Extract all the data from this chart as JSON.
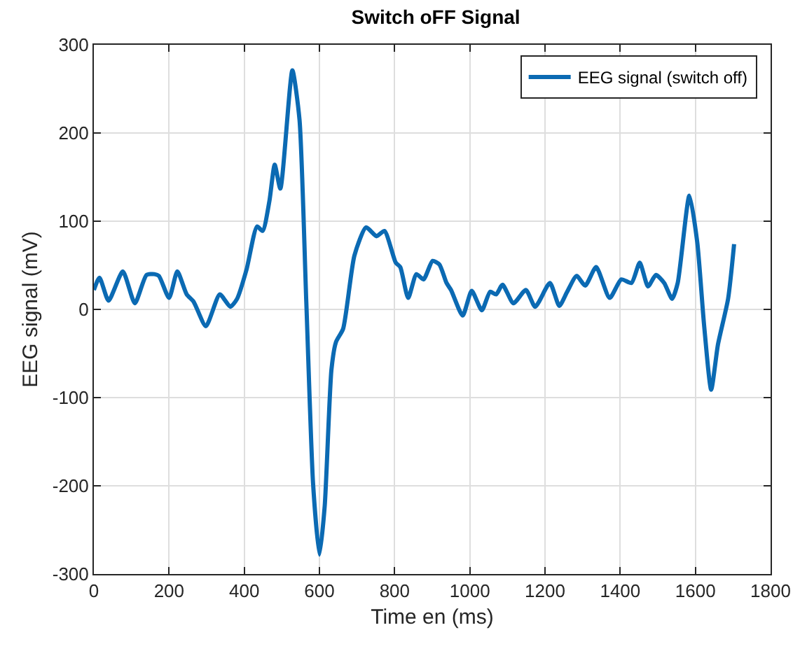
{
  "chart_data": {
    "type": "line",
    "title": "Switch oFF Signal",
    "xlabel": "Time en (ms)",
    "ylabel": "EEG signal (mV)",
    "x": [
      0,
      15,
      39,
      77,
      109,
      140,
      161,
      173,
      200,
      222,
      247,
      265,
      298,
      335,
      363,
      381,
      406,
      434,
      449,
      467,
      481,
      496,
      528,
      547,
      565,
      583,
      600,
      614,
      632,
      644,
      663,
      693,
      724,
      752,
      773,
      803,
      815,
      836,
      858,
      877,
      901,
      919,
      938,
      950,
      981,
      1005,
      1032,
      1054,
      1070,
      1087,
      1116,
      1149,
      1174,
      1213,
      1238,
      1259,
      1284,
      1307,
      1336,
      1372,
      1403,
      1430,
      1452,
      1474,
      1495,
      1517,
      1538,
      1553,
      1584,
      1605,
      1623,
      1642,
      1660,
      1687,
      1703
    ],
    "series": [
      {
        "name": "EEG signal (switch off)",
        "color": "#0b6ab3",
        "values": [
          22,
          36,
          10,
          43,
          7,
          39,
          40,
          38,
          13,
          43,
          17,
          9,
          -19,
          17,
          3,
          12,
          45,
          94,
          89,
          123,
          164,
          137,
          271,
          215,
          9,
          -197,
          -278,
          -223,
          -68,
          -37,
          -22,
          61,
          93,
          83,
          89,
          53,
          48,
          13,
          40,
          34,
          55,
          51,
          30,
          22,
          -7,
          21,
          -1,
          20,
          17,
          28,
          7,
          22,
          3,
          30,
          4,
          20,
          38,
          27,
          48,
          13,
          34,
          30,
          53,
          26,
          39,
          30,
          12,
          30,
          129,
          76,
          -17,
          -91,
          -40,
          12,
          74
        ]
      }
    ],
    "xlim": [
      0,
      1800
    ],
    "xticks": [
      0,
      200,
      400,
      600,
      800,
      1000,
      1200,
      1400,
      1600,
      1800
    ],
    "ylim": [
      -300,
      300
    ],
    "yticks": [
      -300,
      -200,
      -100,
      0,
      100,
      200,
      300
    ],
    "grid": true,
    "legend": "top right",
    "marker": "none",
    "line_style": "solid"
  }
}
